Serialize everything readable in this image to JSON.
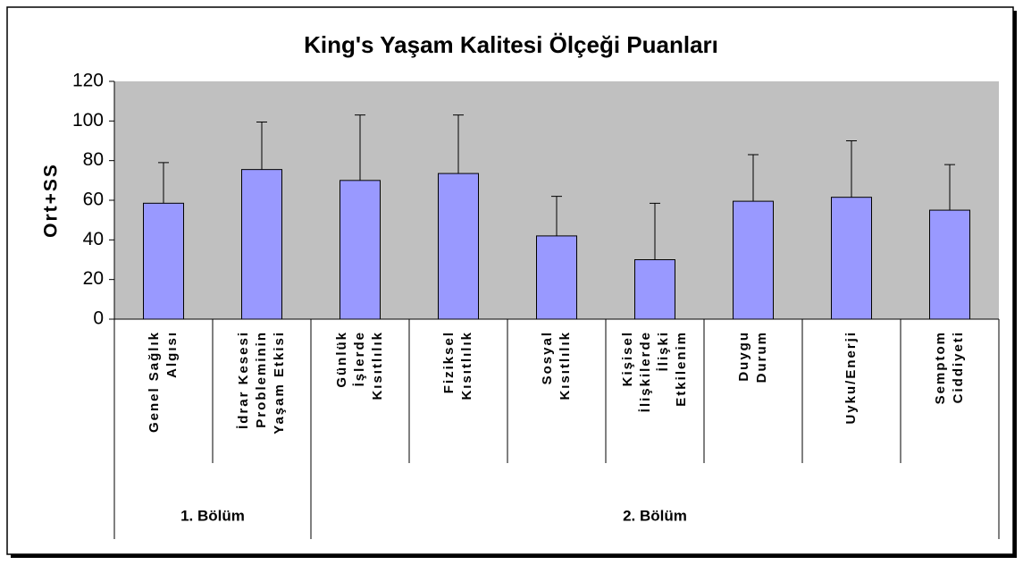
{
  "chart_data": {
    "type": "bar",
    "title": "King's Yaşam Kalitesi Ölçeği Puanları",
    "y_label": "Ort+SS",
    "categories": [
      [
        "Genel Sağlık",
        "Algısı"
      ],
      [
        "İdrar Kesesi",
        "Probleminin",
        "Yaşam Etkisi"
      ],
      [
        "Günlük",
        "İşlerde",
        "Kısıtlılık"
      ],
      [
        "Fiziksel",
        "Kısıtlılık"
      ],
      [
        "Sosyal",
        "Kısıtlılık"
      ],
      [
        "Kişisel",
        "İlişkilerde",
        "İlişki",
        "Etkilenim"
      ],
      [
        "Duygu",
        "Durum"
      ],
      [
        "Uyku/Enerji"
      ],
      [
        "Semptom",
        "Ciddiyeti"
      ]
    ],
    "groups": [
      {
        "label": "1. Bölüm",
        "size": 2
      },
      {
        "label": "2. Bölüm",
        "size": 7
      }
    ],
    "values": [
      58.5,
      75.5,
      70,
      73.5,
      42,
      30,
      59.5,
      61.5,
      55
    ],
    "errors": [
      20.5,
      24,
      33,
      29.5,
      20,
      28.5,
      23.5,
      28.5,
      23
    ],
    "color": "#9999ff",
    "plot_background": "#c0c0c0",
    "ylim": [
      0,
      120
    ],
    "yticks": [
      0,
      20,
      40,
      60,
      80,
      100,
      120
    ],
    "grid": false
  }
}
